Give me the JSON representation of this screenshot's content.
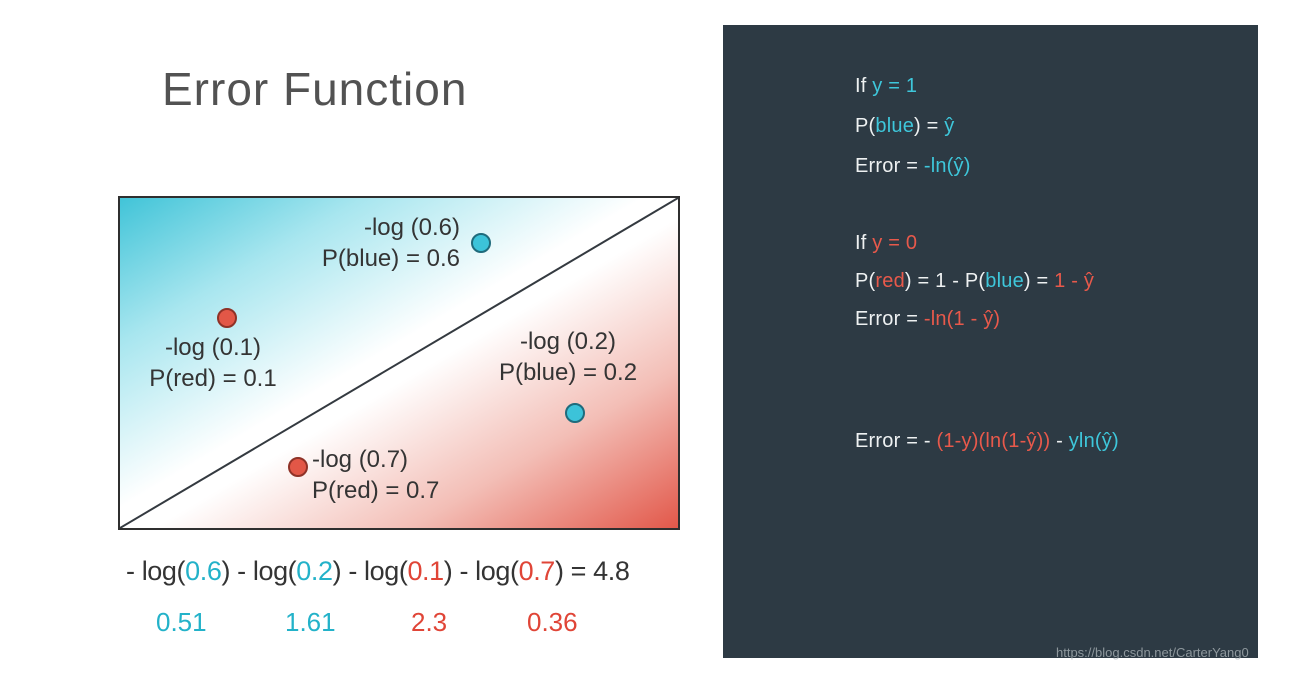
{
  "palette": {
    "cyan": "#23b2c9",
    "red": "#e04537",
    "panel_cyan": "#3ec7db",
    "panel_red": "#e8594b",
    "dark_text": "#343434",
    "panel_bg": "#2d3a44",
    "panel_text": "#eef1f2",
    "dot_blue": "#3cc3d9",
    "dot_red": "#e25747"
  },
  "title": "Error Function",
  "plot": {
    "labels": [
      {
        "line1": "-log (0.6)",
        "line2": "P(blue) = 0.6",
        "point_color": "cyan"
      },
      {
        "line1": "-log (0.1)",
        "line2": "P(red) = 0.1",
        "point_color": "red"
      },
      {
        "line1": "-log (0.2)",
        "line2": "P(blue) = 0.2",
        "point_color": "cyan"
      },
      {
        "line1": "-log (0.7)",
        "line2": "P(red) = 0.7",
        "point_color": "red"
      }
    ]
  },
  "sum_line": {
    "segments": [
      {
        "text": "- log(",
        "color": "dark"
      },
      {
        "text": "0.6",
        "color": "cyan"
      },
      {
        "text": ") - log(",
        "color": "dark"
      },
      {
        "text": "0.2",
        "color": "cyan"
      },
      {
        "text": ") - log(",
        "color": "dark"
      },
      {
        "text": "0.1",
        "color": "red"
      },
      {
        "text": ") - log(",
        "color": "dark"
      },
      {
        "text": "0.7",
        "color": "red"
      },
      {
        "text": ") = 4.8",
        "color": "dark"
      }
    ]
  },
  "result_values": [
    {
      "text": "0.51",
      "color": "cyan"
    },
    {
      "text": "1.61",
      "color": "cyan"
    },
    {
      "text": "2.3",
      "color": "red"
    },
    {
      "text": "0.36",
      "color": "red"
    }
  ],
  "panel": {
    "lines": [
      {
        "segments": [
          {
            "text": "If ",
            "color": "white"
          },
          {
            "text": "y = 1",
            "color": "cyan"
          }
        ]
      },
      {
        "segments": [
          {
            "text": "P(",
            "color": "white"
          },
          {
            "text": "blue",
            "color": "cyan"
          },
          {
            "text": ") = ",
            "color": "white"
          },
          {
            "text": "ŷ",
            "color": "cyan"
          }
        ]
      },
      {
        "segments": [
          {
            "text": "Error = ",
            "color": "white"
          },
          {
            "text": "-ln(ŷ)",
            "color": "cyan"
          }
        ]
      },
      {
        "segments": [
          {
            "text": "If ",
            "color": "white"
          },
          {
            "text": "y = 0",
            "color": "red"
          }
        ]
      },
      {
        "segments": [
          {
            "text": "P(",
            "color": "white"
          },
          {
            "text": "red",
            "color": "red"
          },
          {
            "text": ") = 1 - P(",
            "color": "white"
          },
          {
            "text": "blue",
            "color": "cyan"
          },
          {
            "text": ") = ",
            "color": "white"
          },
          {
            "text": "1 - ŷ",
            "color": "red"
          }
        ]
      },
      {
        "segments": [
          {
            "text": "Error = ",
            "color": "white"
          },
          {
            "text": "-ln(1 - ŷ)",
            "color": "red"
          }
        ]
      },
      {
        "segments": [
          {
            "text": "Error = - ",
            "color": "white"
          },
          {
            "text": "(1-y)(ln(1-ŷ))",
            "color": "red"
          },
          {
            "text": " - ",
            "color": "white"
          },
          {
            "text": "yln(ŷ)",
            "color": "cyan"
          }
        ]
      }
    ],
    "watermark": "https://blog.csdn.net/CarterYang0"
  }
}
